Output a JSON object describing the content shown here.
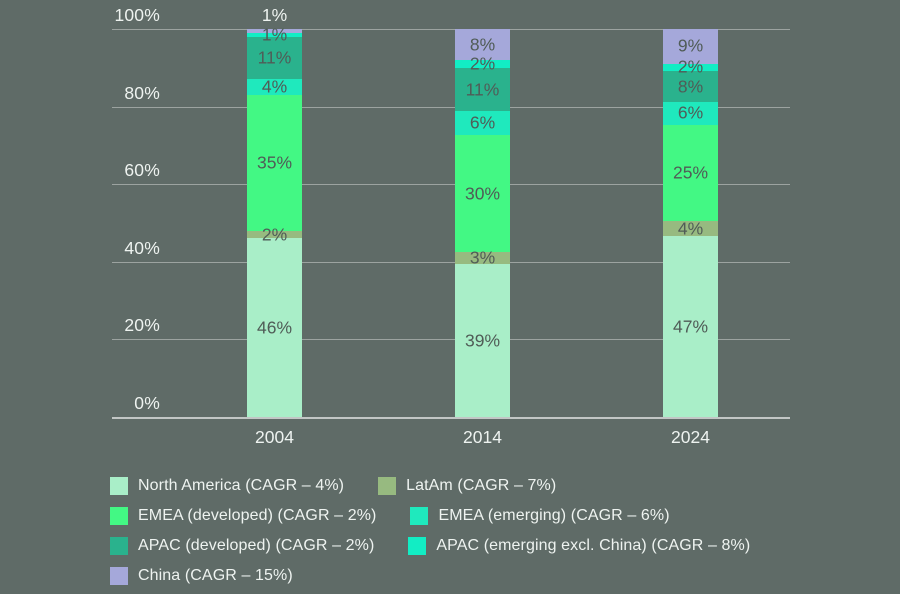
{
  "background_color": "#5f6b67",
  "colors": {
    "grid": "rgba(255,255,255,0.38)",
    "axis_line": "rgba(255,255,255,0.62)",
    "tick_text": "#eef3f0",
    "bar_label_text": "#505c57",
    "bar_label_text_outside": "#eef3f0"
  },
  "chart_data": {
    "type": "bar",
    "subtype": "stacked-100-percent",
    "title": "",
    "xlabel": "",
    "ylabel": "",
    "grid": true,
    "legend_position": "bottom",
    "ylim": [
      0,
      100
    ],
    "y_ticks": [
      {
        "value": 100,
        "label": "100%"
      },
      {
        "value": 80,
        "label": "80%"
      },
      {
        "value": 60,
        "label": "60%"
      },
      {
        "value": 40,
        "label": "40%"
      },
      {
        "value": 20,
        "label": "20%"
      },
      {
        "value": 0,
        "label": "0%"
      }
    ],
    "categories": [
      "2004",
      "2014",
      "2024"
    ],
    "series_top_to_bottom": [
      {
        "name": "China",
        "color": "#a5a8da",
        "values": [
          1,
          8,
          9
        ],
        "label_outside": [
          true,
          false,
          false
        ]
      },
      {
        "name": "APAC (emerging excl. China)",
        "color": "#12edc4",
        "values": [
          1,
          2,
          2
        ],
        "label_outside": [
          false,
          false,
          false
        ]
      },
      {
        "name": "APAC (developed)",
        "color": "#2ab28d",
        "values": [
          11,
          11,
          8
        ],
        "label_outside": [
          false,
          false,
          false
        ]
      },
      {
        "name": "EMEA (emerging)",
        "color": "#1fe9bd",
        "values": [
          4,
          6,
          6
        ],
        "label_outside": [
          false,
          false,
          false
        ]
      },
      {
        "name": "EMEA (developed)",
        "color": "#43f884",
        "values": [
          35,
          30,
          25
        ],
        "label_outside": [
          false,
          false,
          false
        ]
      },
      {
        "name": "LatAm",
        "color": "#97ba80",
        "values": [
          2,
          3,
          4
        ],
        "label_outside": [
          false,
          false,
          false
        ]
      },
      {
        "name": "North America",
        "color": "#a9eec8",
        "values": [
          46,
          39,
          47
        ],
        "label_outside": [
          false,
          false,
          false
        ]
      }
    ]
  },
  "legend": {
    "rows": [
      [
        {
          "label": "North America (CAGR – 4%)",
          "color": "#a9eec8"
        },
        {
          "label": "LatAm (CAGR – 7%)",
          "color": "#97ba80"
        }
      ],
      [
        {
          "label": "EMEA (developed) (CAGR – 2%)",
          "color": "#43f884"
        },
        {
          "label": "EMEA (emerging) (CAGR – 6%)",
          "color": "#1fe9bd"
        }
      ],
      [
        {
          "label": "APAC (developed) (CAGR – 2%)",
          "color": "#2ab28d"
        },
        {
          "label": "APAC (emerging excl. China) (CAGR – 8%)",
          "color": "#12edc4"
        }
      ],
      [
        {
          "label": "China (CAGR – 15%)",
          "color": "#a5a8da"
        }
      ]
    ]
  }
}
